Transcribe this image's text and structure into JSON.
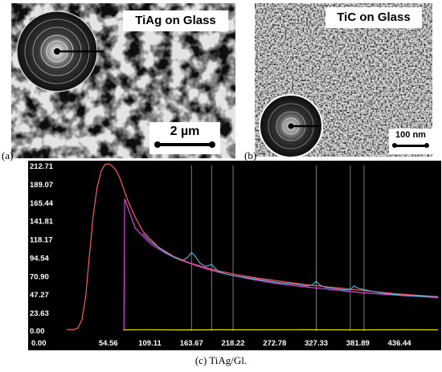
{
  "figure": {
    "panel_a": {
      "letter": "(a)",
      "label": "TiAg on Glass",
      "scalebar": "2 µm"
    },
    "panel_b": {
      "letter": "(b)",
      "label": "TiC on Glass",
      "scalebar": "100 nm"
    },
    "caption": "(c) TiAg/Gl."
  },
  "chart_data": {
    "type": "line",
    "title": "",
    "xlabel": "",
    "ylabel": "",
    "x_ticks": [
      "0.00",
      "54.56",
      "109.11",
      "163.67",
      "218.22",
      "272.78",
      "327.33",
      "381.89",
      "436.44"
    ],
    "y_ticks": [
      "0.00",
      "23.63",
      "47.27",
      "70.90",
      "94.54",
      "118.17",
      "141.81",
      "165.44",
      "189.07",
      "212.71"
    ],
    "xlim": [
      0,
      487
    ],
    "ylim": [
      0,
      212.71
    ],
    "peak_markers_x": [
      163.67,
      190,
      218.22,
      327.33,
      372,
      390
    ],
    "series": [
      {
        "color": "#ff5a5a",
        "x": [
          0,
          10,
          15,
          20,
          25,
          30,
          35,
          40,
          45,
          50,
          55,
          60,
          65,
          70,
          75,
          80,
          90,
          100,
          120,
          140,
          160,
          180,
          200,
          220,
          250,
          280,
          310,
          340,
          370,
          400,
          430,
          460,
          487
        ],
        "values": [
          2,
          2,
          4,
          15,
          45,
          100,
          150,
          185,
          205,
          214,
          215,
          212,
          206,
          196,
          182,
          168,
          146,
          128,
          108,
          96,
          88,
          82,
          77,
          73,
          68,
          64,
          60,
          57,
          54,
          51,
          48,
          46,
          44
        ]
      },
      {
        "color": "#e040e0",
        "x": [
          75,
          76,
          90,
          110,
          130,
          150,
          170,
          190,
          210,
          240,
          270,
          300,
          330,
          360,
          390,
          420,
          450,
          487
        ],
        "values": [
          0,
          170,
          132,
          112,
          100,
          91,
          84,
          78,
          73,
          67,
          62,
          58,
          55,
          52,
          49,
          47,
          45,
          43
        ]
      },
      {
        "color": "#55b0d0",
        "x": [
          100,
          110,
          120,
          130,
          140,
          150,
          155,
          160,
          163.67,
          168,
          175,
          182,
          186,
          190,
          195,
          200,
          210,
          220,
          240,
          260,
          280,
          300,
          315,
          322,
          327.33,
          332,
          340,
          355,
          365,
          372,
          377,
          382,
          400,
          420,
          440,
          460,
          487
        ],
        "values": [
          125,
          115,
          108,
          101,
          95,
          91,
          92,
          96,
          101,
          97,
          87,
          83,
          84,
          86,
          80,
          76,
          73,
          71,
          68,
          65,
          62,
          60,
          58,
          59,
          64,
          59,
          56,
          54,
          53,
          53,
          58,
          55,
          51,
          48,
          46,
          45,
          44
        ]
      },
      {
        "color": "#e0e000",
        "x": [
          75,
          100,
          150,
          200,
          250,
          300,
          350,
          400,
          450,
          487
        ],
        "values": [
          1.5,
          1.8,
          1.4,
          1.7,
          1.5,
          1.8,
          1.6,
          1.5,
          1.7,
          1.6
        ]
      }
    ]
  }
}
